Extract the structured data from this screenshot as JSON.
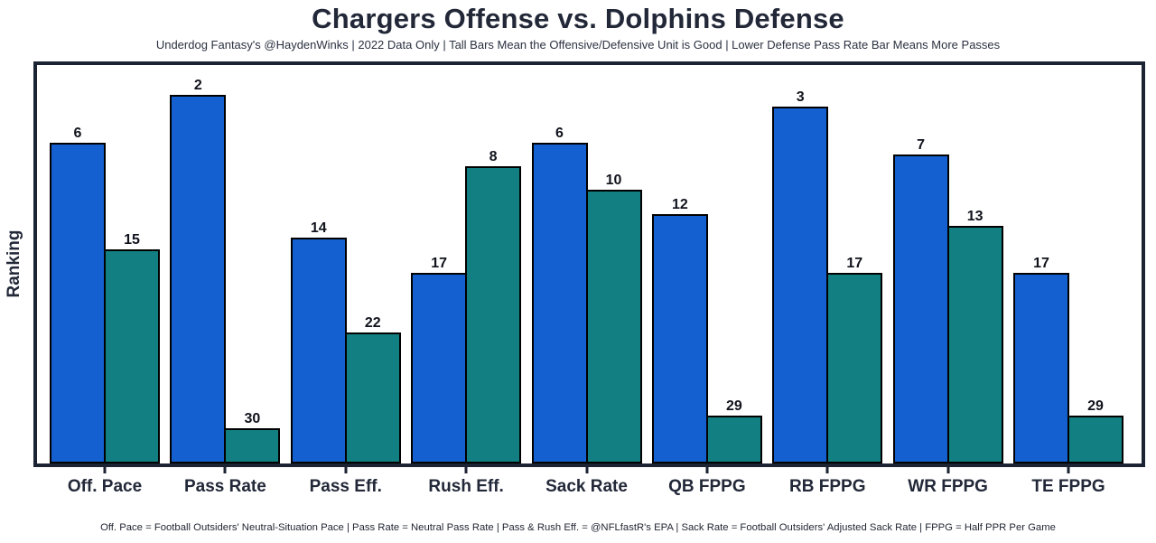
{
  "page": {
    "background": "#ffffff"
  },
  "chart_data": {
    "type": "bar",
    "title": "Chargers Offense vs. Dolphins Defense",
    "subtitle": "Underdog Fantasy's @HaydenWinks | 2022 Data Only | Tall Bars Mean the Offensive/Defensive Unit is Good | Lower Defense Pass Rate Bar Means More Passes",
    "footnote": "Off. Pace = Football Outsiders' Neutral-Situation Pace | Pass Rate = Neutral Pass Rate | Pass & Rush Eff. = @NFLfastR's EPA | Sack Rate = Football Outsiders' Adjusted Sack Rate | FPPG = Half PPR Per Game",
    "ylabel": "Ranking",
    "categories": [
      "Off. Pace",
      "Pass Rate",
      "Pass Eff.",
      "Rush Eff.",
      "Sack Rate",
      "QB FPPG",
      "RB FPPG",
      "WR FPPG",
      "TE FPPG"
    ],
    "series": [
      {
        "name": "Chargers Offense",
        "color": "#1560d0",
        "values": [
          6,
          2,
          14,
          17,
          6,
          12,
          3,
          7,
          17
        ]
      },
      {
        "name": "Dolphins Defense",
        "color": "#127f82",
        "values": [
          15,
          30,
          22,
          8,
          10,
          29,
          17,
          13,
          29
        ]
      }
    ],
    "value_note": "labels above bars are NFL ranks; lower rank is drawn as a taller bar",
    "rank_scale": {
      "max_drawn": 33,
      "axis_span": 33.5
    },
    "ylim": [
      0,
      33.5
    ],
    "grid": false,
    "legend": "none",
    "frame_color": "#1c2332",
    "bar_edge_color": "#000000"
  }
}
